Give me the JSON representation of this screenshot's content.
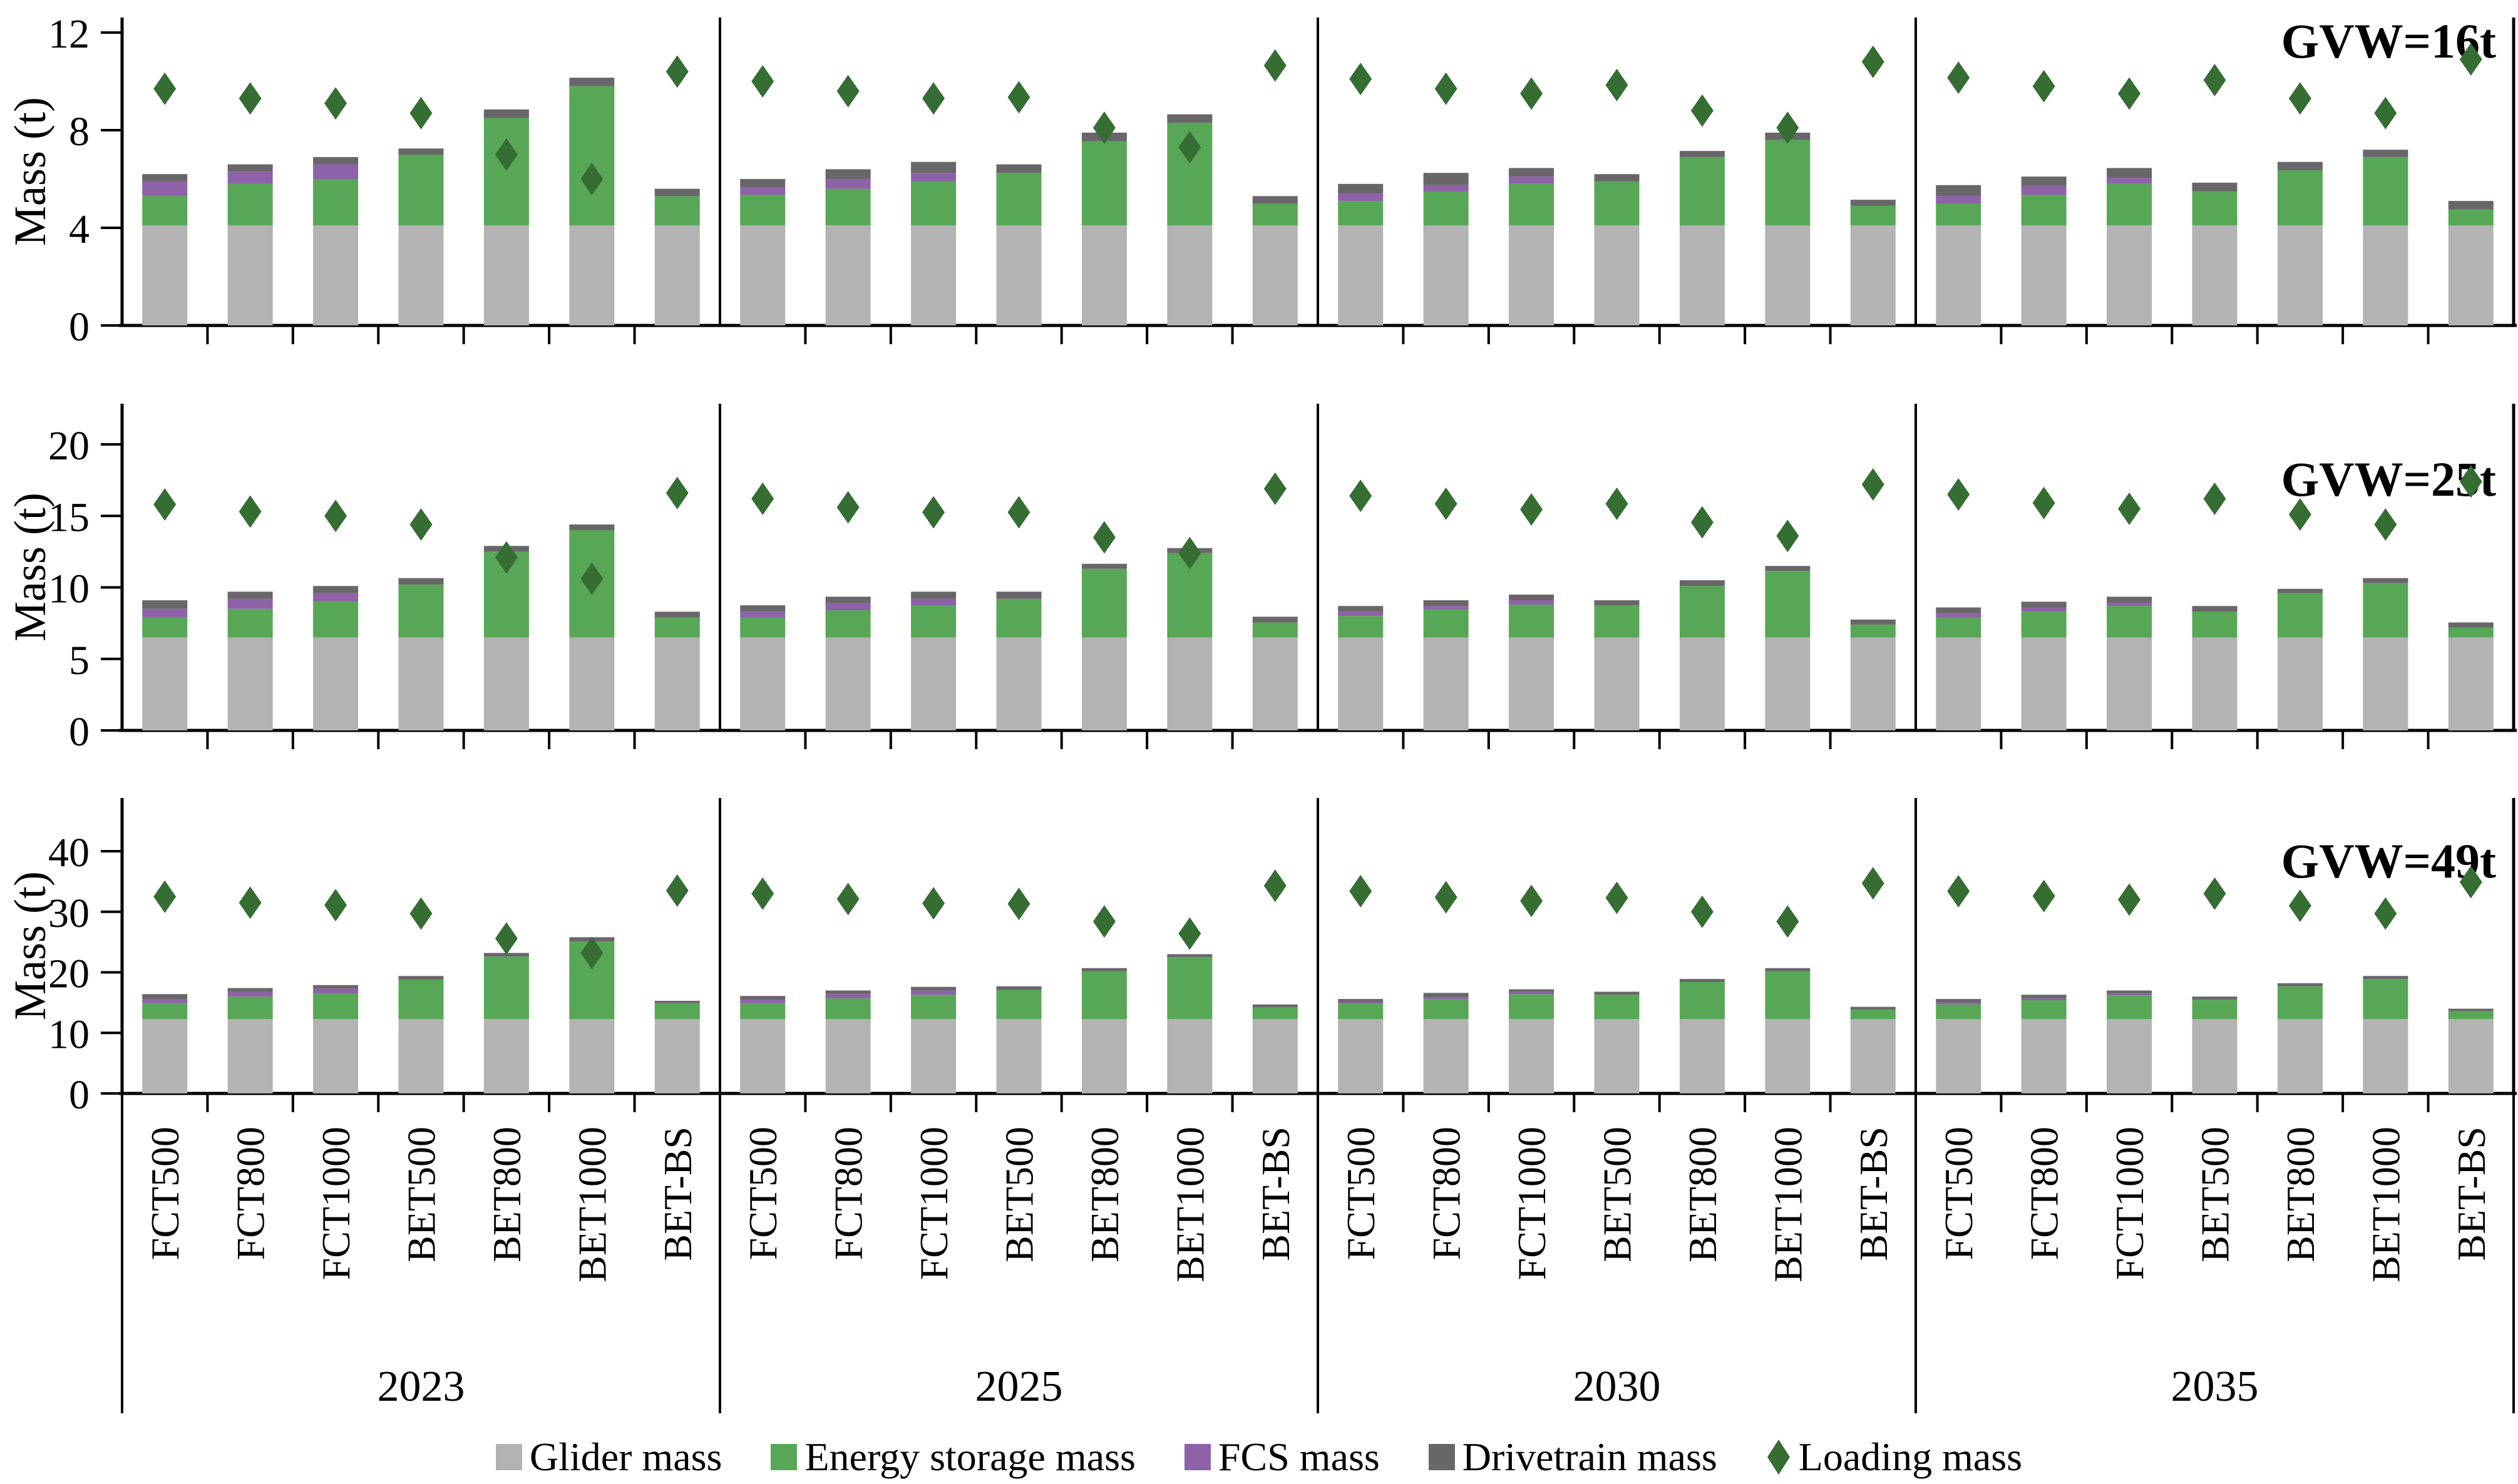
{
  "figure": {
    "ylabel": "Mass (t)",
    "background": "#ffffff",
    "axis_color": "#000000"
  },
  "legend": [
    {
      "label": "Glider mass",
      "marker": "square",
      "color": "#b3b3b3"
    },
    {
      "label": "Energy storage mass",
      "marker": "square",
      "color": "#57a757"
    },
    {
      "label": "FCS mass",
      "marker": "square",
      "color": "#8e62a8"
    },
    {
      "label": "Drivetrain mass",
      "marker": "square",
      "color": "#696669"
    },
    {
      "label": "Loading mass",
      "marker": "diamond",
      "color": "#356d33"
    }
  ],
  "chart_data": {
    "type": "bar",
    "stacked": true,
    "grid": false,
    "legend_position": "bottom",
    "categories": [
      "FCT500",
      "FCT800",
      "FCT1000",
      "BET500",
      "BET800",
      "BET1000",
      "BET-BS"
    ],
    "year_groups": [
      "2023",
      "2025",
      "2030",
      "2035"
    ],
    "segment_order": [
      "glider",
      "energy",
      "fcs",
      "drivetrain"
    ],
    "colors": {
      "glider": "#b3b3b3",
      "energy": "#57a757",
      "fcs": "#8e62a8",
      "drivetrain": "#696669",
      "loading": "#356d33"
    },
    "ylabel": "Mass (t)",
    "rows": [
      {
        "title": "GVW=16t",
        "ylim": [
          0,
          12
        ],
        "yticks": [
          0,
          4,
          8,
          12
        ],
        "glider_mass": 4.1,
        "years": [
          {
            "year": "2023",
            "energy": [
              1.2,
              1.7,
              1.9,
              2.9,
              4.4,
              5.7,
              1.2
            ],
            "fcs": [
              0.6,
              0.5,
              0.6,
              0,
              0,
              0,
              0
            ],
            "drivetrain": [
              0.3,
              0.3,
              0.3,
              0.25,
              0.35,
              0.35,
              0.3
            ],
            "loading": [
              9.7,
              9.3,
              9.1,
              8.7,
              7.0,
              6.0,
              10.4
            ]
          },
          {
            "year": "2025",
            "energy": [
              1.25,
              1.5,
              1.8,
              2.15,
              3.45,
              4.2,
              0.9
            ],
            "fcs": [
              0.3,
              0.4,
              0.35,
              0,
              0,
              0,
              0
            ],
            "drivetrain": [
              0.35,
              0.4,
              0.45,
              0.35,
              0.35,
              0.35,
              0.3
            ],
            "loading": [
              10.0,
              9.6,
              9.3,
              9.35,
              8.1,
              7.3,
              10.65
            ]
          },
          {
            "year": "2030",
            "energy": [
              1.0,
              1.4,
              1.7,
              1.8,
              2.8,
              3.5,
              0.8
            ],
            "fcs": [
              0.3,
              0.25,
              0.3,
              0,
              0,
              0,
              0
            ],
            "drivetrain": [
              0.4,
              0.5,
              0.35,
              0.3,
              0.25,
              0.3,
              0.25
            ],
            "loading": [
              10.1,
              9.7,
              9.5,
              9.85,
              8.8,
              8.1,
              10.8
            ]
          },
          {
            "year": "2035",
            "energy": [
              0.9,
              1.25,
              1.7,
              1.4,
              2.25,
              2.8,
              0.65
            ],
            "fcs": [
              0.3,
              0.35,
              0.25,
              0,
              0,
              0,
              0
            ],
            "drivetrain": [
              0.45,
              0.4,
              0.4,
              0.35,
              0.35,
              0.3,
              0.35
            ],
            "loading": [
              10.15,
              9.8,
              9.5,
              10.05,
              9.3,
              8.7,
              10.9
            ]
          }
        ]
      },
      {
        "title": "GVW=25t",
        "ylim": [
          0,
          20
        ],
        "yticks": [
          0,
          5,
          10,
          15,
          20
        ],
        "glider_mass": 6.5,
        "years": [
          {
            "year": "2023",
            "energy": [
              1.4,
              2.0,
              2.5,
              3.7,
              6.0,
              7.5,
              1.4
            ],
            "fcs": [
              0.6,
              0.7,
              0.6,
              0,
              0,
              0,
              0
            ],
            "drivetrain": [
              0.6,
              0.5,
              0.5,
              0.45,
              0.4,
              0.4,
              0.4
            ],
            "loading": [
              15.8,
              15.3,
              15.0,
              14.4,
              12.1,
              10.6,
              16.6
            ]
          },
          {
            "year": "2025",
            "energy": [
              1.4,
              1.9,
              2.25,
              2.7,
              4.8,
              5.9,
              1.05
            ],
            "fcs": [
              0.4,
              0.5,
              0.45,
              0,
              0,
              0,
              0
            ],
            "drivetrain": [
              0.45,
              0.45,
              0.5,
              0.5,
              0.35,
              0.35,
              0.4
            ],
            "loading": [
              16.2,
              15.6,
              15.25,
              15.25,
              13.5,
              12.4,
              16.9
            ]
          },
          {
            "year": "2030",
            "energy": [
              1.5,
              1.95,
              2.3,
              2.25,
              3.6,
              4.65,
              0.9
            ],
            "fcs": [
              0.3,
              0.25,
              0.3,
              0,
              0,
              0,
              0
            ],
            "drivetrain": [
              0.4,
              0.4,
              0.4,
              0.35,
              0.4,
              0.35,
              0.35
            ],
            "loading": [
              16.4,
              15.85,
              15.45,
              15.85,
              14.55,
              13.6,
              17.2
            ]
          },
          {
            "year": "2035",
            "energy": [
              1.4,
              1.8,
              2.2,
              1.8,
              3.1,
              3.8,
              0.7
            ],
            "fcs": [
              0.3,
              0.3,
              0.25,
              0,
              0,
              0,
              0
            ],
            "drivetrain": [
              0.4,
              0.4,
              0.4,
              0.4,
              0.3,
              0.35,
              0.35
            ],
            "loading": [
              16.5,
              15.9,
              15.5,
              16.2,
              15.1,
              14.4,
              17.4
            ]
          }
        ]
      },
      {
        "title": "GVW=49t",
        "ylim": [
          0,
          40
        ],
        "yticks": [
          0,
          10,
          20,
          30,
          40
        ],
        "glider_mass": 12.3,
        "years": [
          {
            "year": "2023",
            "energy": [
              2.6,
              3.7,
              4.2,
              6.5,
              10.3,
              12.8,
              2.6
            ],
            "fcs": [
              0.7,
              0.8,
              0.8,
              0,
              0,
              0,
              0
            ],
            "drivetrain": [
              0.8,
              0.6,
              0.6,
              0.6,
              0.6,
              0.7,
              0.4
            ],
            "loading": [
              32.5,
              31.5,
              31.1,
              29.7,
              25.6,
              23.2,
              33.5
            ]
          },
          {
            "year": "2025",
            "energy": [
              2.6,
              3.4,
              4.0,
              4.8,
              7.9,
              10.2,
              1.9
            ],
            "fcs": [
              0.6,
              0.7,
              0.7,
              0,
              0,
              0,
              0
            ],
            "drivetrain": [
              0.6,
              0.6,
              0.6,
              0.6,
              0.5,
              0.5,
              0.5
            ],
            "loading": [
              33.0,
              32.1,
              31.4,
              31.3,
              28.4,
              26.4,
              34.3
            ]
          },
          {
            "year": "2030",
            "energy": [
              2.5,
              3.3,
              4.1,
              4.0,
              6.1,
              7.9,
              1.6
            ],
            "fcs": [
              0.3,
              0.3,
              0.4,
              0,
              0,
              0,
              0
            ],
            "drivetrain": [
              0.5,
              0.7,
              0.4,
              0.5,
              0.5,
              0.5,
              0.4
            ],
            "loading": [
              33.4,
              32.4,
              31.8,
              32.3,
              30.0,
              28.4,
              34.7
            ]
          },
          {
            "year": "2035",
            "energy": [
              2.4,
              3.1,
              3.9,
              3.2,
              5.4,
              6.6,
              1.3
            ],
            "fcs": [
              0.3,
              0.3,
              0.3,
              0,
              0,
              0,
              0
            ],
            "drivetrain": [
              0.6,
              0.6,
              0.5,
              0.5,
              0.5,
              0.5,
              0.4
            ],
            "loading": [
              33.4,
              32.6,
              32.0,
              33.0,
              31.0,
              29.7,
              34.9
            ]
          }
        ]
      }
    ]
  }
}
